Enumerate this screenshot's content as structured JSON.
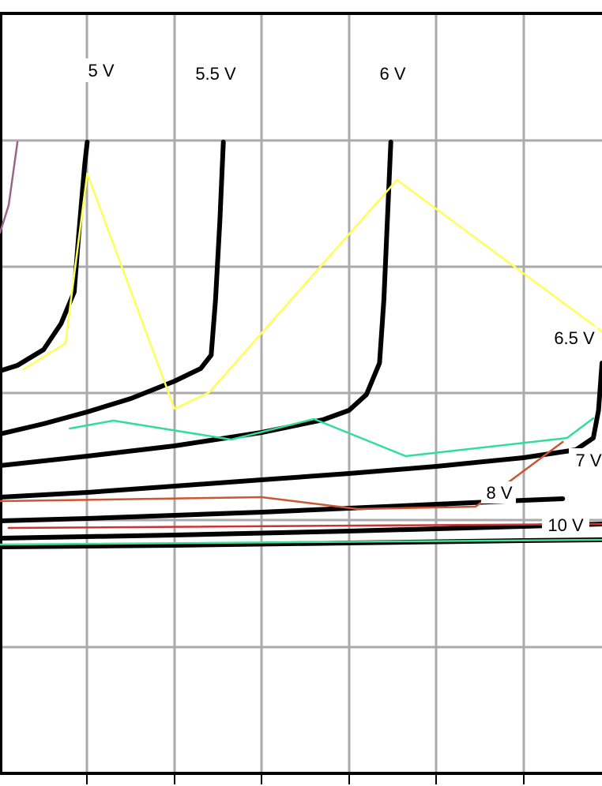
{
  "chart_data": {
    "type": "line",
    "title": "",
    "xlabel": "",
    "ylabel": "",
    "grid": true,
    "xlim": [
      0,
      690
    ],
    "ylim": [
      0,
      800
    ],
    "series": [
      {
        "name": "5 V",
        "color": "#000000",
        "points": [
          [
            0,
            510
          ],
          [
            20,
            517
          ],
          [
            50,
            537
          ],
          [
            70,
            570
          ],
          [
            85,
            610
          ],
          [
            90,
            680
          ],
          [
            97,
            770
          ],
          [
            100,
            800
          ]
        ]
      },
      {
        "name": "5.5 V",
        "color": "#000000",
        "points": [
          [
            0,
            430
          ],
          [
            50,
            443
          ],
          [
            100,
            458
          ],
          [
            150,
            475
          ],
          [
            200,
            497
          ],
          [
            230,
            513
          ],
          [
            242,
            530
          ],
          [
            247,
            600
          ],
          [
            252,
            700
          ],
          [
            256,
            800
          ]
        ]
      },
      {
        "name": "6 V",
        "color": "#000000",
        "points": [
          [
            0,
            390
          ],
          [
            100,
            402
          ],
          [
            200,
            415
          ],
          [
            300,
            432
          ],
          [
            370,
            448
          ],
          [
            400,
            460
          ],
          [
            420,
            480
          ],
          [
            435,
            520
          ],
          [
            440,
            600
          ],
          [
            444,
            700
          ],
          [
            448,
            800
          ]
        ]
      },
      {
        "name": "6.5 V",
        "color": "#000000",
        "points": [
          [
            0,
            350
          ],
          [
            100,
            356
          ],
          [
            200,
            364
          ],
          [
            300,
            372
          ],
          [
            400,
            380
          ],
          [
            500,
            389
          ],
          [
            600,
            400
          ],
          [
            660,
            410
          ],
          [
            680,
            425
          ],
          [
            686,
            460
          ],
          [
            690,
            520
          ]
        ]
      },
      {
        "name": "7 V",
        "color": "#000000",
        "points": [
          [
            0,
            320
          ],
          [
            100,
            323
          ],
          [
            200,
            327
          ],
          [
            300,
            331
          ],
          [
            400,
            336
          ],
          [
            500,
            341
          ],
          [
            600,
            346
          ],
          [
            645,
            348
          ]
        ]
      },
      {
        "name": "8 V",
        "color": "#000000",
        "points": [
          [
            0,
            298
          ],
          [
            200,
            302
          ],
          [
            400,
            307
          ],
          [
            600,
            313
          ],
          [
            690,
            316
          ]
        ]
      },
      {
        "name": "10 V",
        "color": "#000000",
        "points": [
          [
            0,
            287
          ],
          [
            200,
            289
          ],
          [
            400,
            292
          ],
          [
            600,
            295
          ],
          [
            690,
            296
          ]
        ]
      }
    ],
    "overlays": [
      {
        "color": "#ffff55",
        "points": [
          [
            27,
            512
          ],
          [
            75,
            545
          ],
          [
            100,
            760
          ],
          [
            200,
            462
          ],
          [
            240,
            483
          ],
          [
            455,
            752
          ],
          [
            690,
            560
          ]
        ]
      },
      {
        "color": "#33dd99",
        "points": [
          [
            80,
            437
          ],
          [
            130,
            447
          ],
          [
            265,
            423
          ],
          [
            360,
            449
          ],
          [
            465,
            402
          ],
          [
            650,
            425
          ],
          [
            680,
            450
          ]
        ]
      },
      {
        "color": "#cc5533",
        "points": [
          [
            0,
            345
          ],
          [
            300,
            350
          ],
          [
            410,
            335
          ],
          [
            545,
            338
          ],
          [
            645,
            420
          ]
        ]
      },
      {
        "color": "#cc3333",
        "points": [
          [
            10,
            311
          ],
          [
            690,
            316
          ]
        ]
      },
      {
        "color": "#44dd99",
        "points": [
          [
            0,
            290
          ],
          [
            690,
            296
          ]
        ]
      },
      {
        "color": "#996688",
        "points": [
          [
            0,
            685
          ],
          [
            10,
            720
          ],
          [
            20,
            800
          ]
        ]
      }
    ]
  }
}
